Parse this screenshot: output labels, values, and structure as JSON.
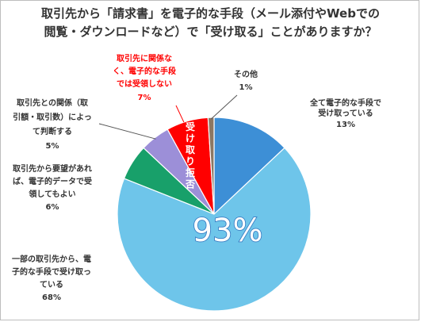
{
  "chart_data": {
    "type": "pie",
    "title_lines": [
      "取引先から「請求書」を電子的な手段（メール添付やWebでの",
      "閲覧・ダウンロードなど）で「受け取る」ことがありますか？"
    ],
    "slices": [
      {
        "label_lines": [
          "全て電子的な手段で",
          "受け取っている"
        ],
        "value": 13,
        "value_label": "13%",
        "color": "#3d8fd6"
      },
      {
        "label_lines": [
          "一部の取引先から、電",
          "子的な手段で受け取っ",
          "ている"
        ],
        "value": 68,
        "value_label": "68%",
        "color": "#6ec5ea"
      },
      {
        "label_lines": [
          "取引先から要望があれ",
          "ば、電子的データで受",
          "領してもよい"
        ],
        "value": 6,
        "value_label": "6%",
        "color": "#18a06a"
      },
      {
        "label_lines": [
          "取引先との関係（取",
          "引額・取引数）によっ",
          "て判断する"
        ],
        "value": 5,
        "value_label": "5%",
        "color": "#9c8fd8"
      },
      {
        "label_lines": [
          "取引先に関係な",
          "く、電子的な手段",
          "では受領しない"
        ],
        "value": 7,
        "value_label": "7%",
        "color": "#ff0000"
      },
      {
        "label_lines": [
          "その他"
        ],
        "value": 1,
        "value_label": "1%",
        "color": "#8b7763"
      }
    ],
    "annotations": {
      "big_percent": "93%",
      "reject_label": "受け取り拒否"
    }
  }
}
